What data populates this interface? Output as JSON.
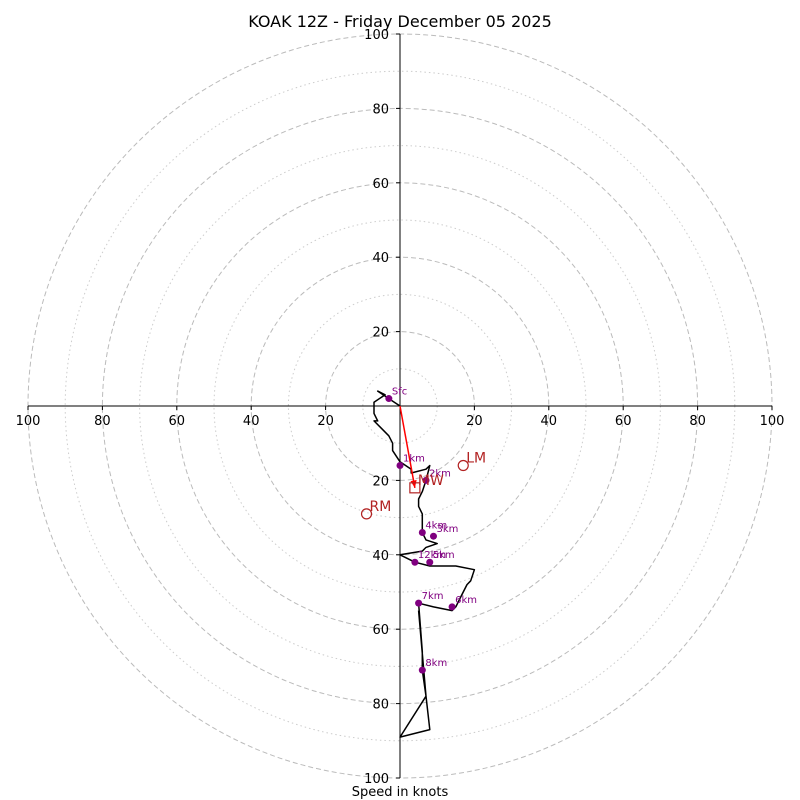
{
  "chart_data": {
    "type": "hodograph",
    "title": "KOAK 12Z - Friday December 05 2025",
    "xlabel": "Speed in knots",
    "range": [
      -100,
      100
    ],
    "ring_major": [
      20,
      40,
      60,
      80,
      100
    ],
    "ring_minor": [
      10,
      30,
      50,
      70,
      90
    ],
    "x_tick_labels": [
      "100",
      "80",
      "60",
      "40",
      "20",
      "20",
      "40",
      "60",
      "80",
      "100"
    ],
    "x_tick_values": [
      -100,
      -80,
      -60,
      -40,
      -20,
      20,
      40,
      60,
      80,
      100
    ],
    "y_tick_labels": [
      "100",
      "80",
      "60",
      "40",
      "20",
      "20",
      "40",
      "60",
      "80",
      "100"
    ],
    "y_tick_values": [
      100,
      80,
      60,
      40,
      20,
      -20,
      -40,
      -60,
      -80,
      -100
    ],
    "colors": {
      "trace": "#000000",
      "points": "#800080",
      "motion": "#b22222",
      "shear_arrow": "#ff0000",
      "grid": "#bbbbbb"
    },
    "trace": [
      [
        0,
        0
      ],
      [
        -3,
        2
      ],
      [
        -6,
        4
      ],
      [
        -4,
        3
      ],
      [
        -7,
        1
      ],
      [
        -7,
        -2
      ],
      [
        -6,
        -4
      ],
      [
        -7,
        -4
      ],
      [
        -5,
        -6
      ],
      [
        -3,
        -8
      ],
      [
        -2,
        -10
      ],
      [
        -2,
        -12
      ],
      [
        0,
        -15
      ],
      [
        3,
        -17
      ],
      [
        3,
        -18
      ],
      [
        7,
        -17
      ],
      [
        8,
        -16
      ],
      [
        7,
        -20
      ],
      [
        6,
        -23
      ],
      [
        5,
        -25
      ],
      [
        5,
        -27
      ],
      [
        6,
        -29
      ],
      [
        6,
        -31
      ],
      [
        6,
        -34
      ],
      [
        7,
        -36
      ],
      [
        10,
        -37
      ],
      [
        7,
        -38
      ],
      [
        6,
        -39
      ],
      [
        0,
        -40
      ],
      [
        4,
        -42
      ],
      [
        8,
        -43
      ],
      [
        15,
        -43
      ],
      [
        20,
        -44
      ],
      [
        19,
        -47
      ],
      [
        18,
        -48
      ],
      [
        16,
        -52
      ],
      [
        15,
        -54
      ],
      [
        14,
        -55
      ],
      [
        9,
        -54
      ],
      [
        5,
        -53
      ],
      [
        6,
        -66
      ],
      [
        6,
        -71
      ],
      [
        7,
        -78
      ],
      [
        8,
        -87
      ],
      [
        0,
        -89
      ],
      [
        7,
        -78
      ],
      [
        5,
        -55
      ]
    ],
    "points": [
      {
        "label": "Sfc",
        "u": -3,
        "v": 2
      },
      {
        "label": "1km",
        "u": 0,
        "v": -16
      },
      {
        "label": "2km",
        "u": 7,
        "v": -20
      },
      {
        "label": "3km",
        "u": 9,
        "v": -35
      },
      {
        "label": "4km",
        "u": 6,
        "v": -34
      },
      {
        "label": "5km",
        "u": 8,
        "v": -42
      },
      {
        "label": "12km",
        "u": 4,
        "v": -42
      },
      {
        "label": "6km",
        "u": 14,
        "v": -54
      },
      {
        "label": "7km",
        "u": 5,
        "v": -53
      },
      {
        "label": "8km",
        "u": 6,
        "v": -71
      }
    ],
    "storm_motion": [
      {
        "label": "LM",
        "u": 17,
        "v": -16,
        "marker": "circle"
      },
      {
        "label": "RM",
        "u": -9,
        "v": -29,
        "marker": "circle"
      },
      {
        "label": "MW",
        "u": 4,
        "v": -22,
        "marker": "square"
      }
    ],
    "shear_arrow": {
      "from": [
        0,
        0
      ],
      "to": [
        4,
        -22
      ]
    }
  }
}
